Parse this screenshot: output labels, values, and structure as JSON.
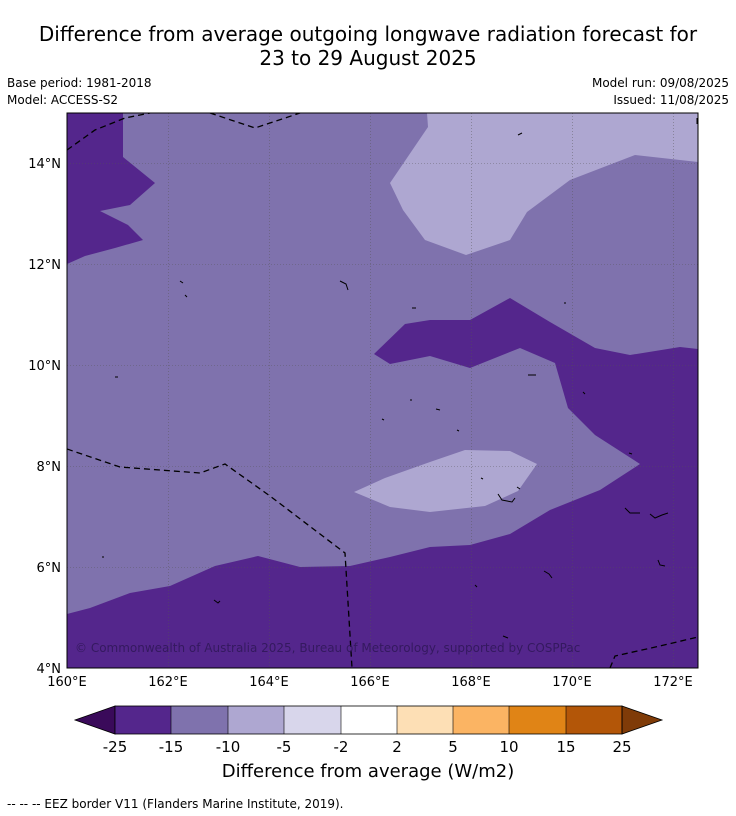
{
  "title": {
    "line1": "Difference from average outgoing longwave radiation forecast for",
    "line2": "23 to 29 August 2025"
  },
  "info": {
    "base_period": "Base period: 1981-2018",
    "model": "Model: ACCESS-S2",
    "model_run": "Model run: 09/08/2025",
    "issued": "Issued: 11/08/2025"
  },
  "map": {
    "lon_ticks": [
      "160°E",
      "162°E",
      "164°E",
      "166°E",
      "168°E",
      "170°E",
      "172°E"
    ],
    "lat_ticks": [
      "4°N",
      "6°N",
      "8°N",
      "10°N",
      "12°N",
      "14°N"
    ],
    "copyright": "© Commonwealth of Australia 2025, Bureau of Meteorology, supported by COSPPac"
  },
  "colorbar": {
    "ticks": [
      "-25",
      "-15",
      "-10",
      "-5",
      "-2",
      "2",
      "5",
      "10",
      "15",
      "25"
    ],
    "label": "Difference from average (W/m2)",
    "colors": {
      "below_-25": "#3a0a5a",
      "-25_to_-15": "#54268c",
      "-15_to_-10": "#7f72ad",
      "-10_to_-5": "#aea7d1",
      "-5_to_-2": "#d8d6eb",
      "-2_to_2": "#ffffff",
      "2_to_5": "#fddfb5",
      "5_to_10": "#fbb463",
      "10_to_15": "#e08416",
      "15_to_25": "#b35608",
      "above_25": "#7f3b08"
    }
  },
  "footnote": "--  --  -- EEZ border V11 (Flanders Marine Institute, 2019)."
}
